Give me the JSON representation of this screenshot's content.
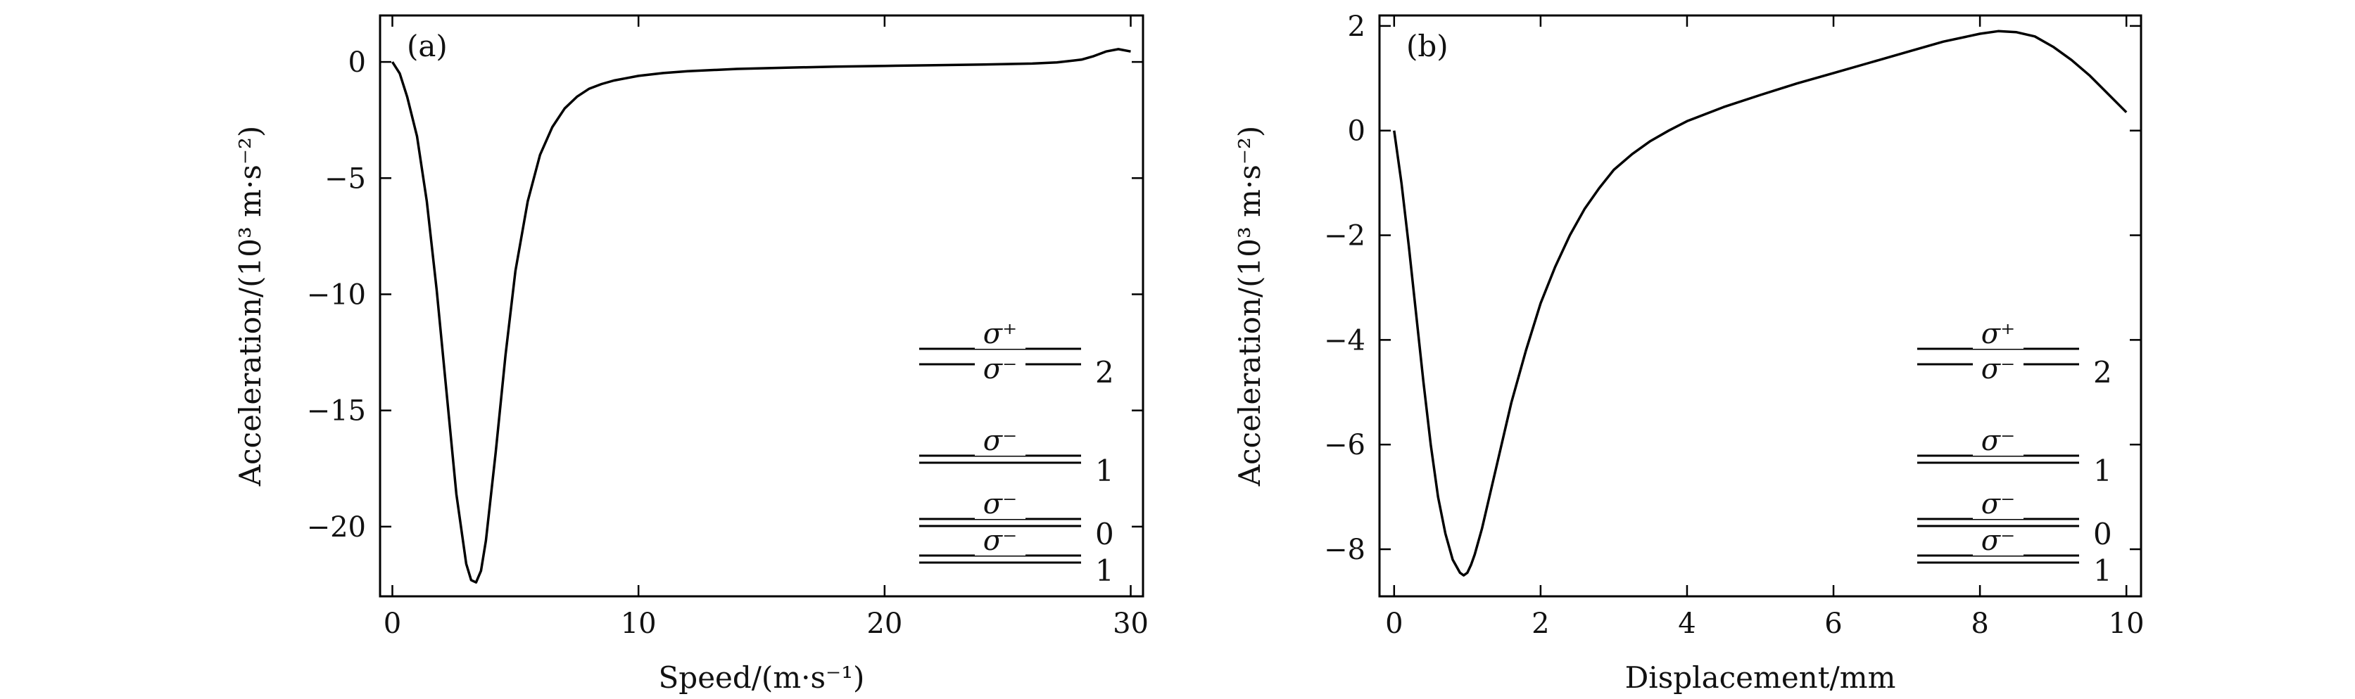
{
  "chart_data": [
    {
      "type": "line",
      "panel_label": "(a)",
      "xlabel": "Speed/(m·s⁻¹)",
      "ylabel": "Acceleration/(10³ m·s⁻²)",
      "xlim": [
        -0.5,
        30.5
      ],
      "ylim": [
        -23,
        2
      ],
      "xticks": [
        0,
        10,
        20,
        30
      ],
      "xtick_labels": [
        "0",
        "10",
        "20",
        "30"
      ],
      "yticks": [
        0,
        -5,
        -10,
        -15,
        -20
      ],
      "ytick_labels": [
        "0",
        "−5",
        "−10",
        "−15",
        "−20"
      ],
      "grid": false,
      "series": [
        {
          "x": [
            0,
            0.3,
            0.6,
            1.0,
            1.4,
            1.8,
            2.2,
            2.6,
            3.0,
            3.2,
            3.4,
            3.6,
            3.8,
            4.2,
            4.6,
            5.0,
            5.5,
            6.0,
            6.5,
            7.0,
            7.5,
            8.0,
            8.5,
            9.0,
            9.5,
            10,
            11,
            12,
            14,
            16,
            18,
            20,
            22,
            24,
            26,
            27,
            28,
            28.5,
            29,
            29.5,
            30
          ],
          "y": [
            0,
            -0.5,
            -1.5,
            -3.2,
            -6.0,
            -9.8,
            -14.2,
            -18.6,
            -21.6,
            -22.3,
            -22.4,
            -21.9,
            -20.6,
            -16.8,
            -12.6,
            -9.0,
            -6.0,
            -4.0,
            -2.8,
            -2.0,
            -1.5,
            -1.15,
            -0.95,
            -0.8,
            -0.7,
            -0.6,
            -0.48,
            -0.4,
            -0.3,
            -0.25,
            -0.2,
            -0.17,
            -0.14,
            -0.11,
            -0.07,
            -0.02,
            0.1,
            0.25,
            0.45,
            0.55,
            0.45
          ]
        }
      ],
      "level_diagram": {
        "levels": [
          {
            "label": "2",
            "transitions": [
              "σ⁺",
              "σ⁻"
            ]
          },
          {
            "label": "1",
            "transitions": [
              "σ⁻"
            ]
          },
          {
            "label": "0",
            "transitions": [
              "σ⁻"
            ]
          },
          {
            "label": "1",
            "transitions": [
              "σ⁻"
            ]
          }
        ]
      }
    },
    {
      "type": "line",
      "panel_label": "(b)",
      "xlabel": "Displacement/mm",
      "ylabel": "Acceleration/(10³ m·s⁻²)",
      "xlim": [
        -0.2,
        10.2
      ],
      "ylim": [
        -8.9,
        2.2
      ],
      "xticks": [
        0,
        2,
        4,
        6,
        8,
        10
      ],
      "xtick_labels": [
        "0",
        "2",
        "4",
        "6",
        "8",
        "10"
      ],
      "yticks": [
        2,
        0,
        -2,
        -4,
        -6,
        -8
      ],
      "ytick_labels": [
        "2",
        "0",
        "−2",
        "−4",
        "−6",
        "−8"
      ],
      "grid": false,
      "series": [
        {
          "x": [
            0,
            0.1,
            0.2,
            0.3,
            0.4,
            0.5,
            0.6,
            0.7,
            0.8,
            0.9,
            0.95,
            1.0,
            1.05,
            1.1,
            1.2,
            1.3,
            1.4,
            1.5,
            1.6,
            1.8,
            2.0,
            2.2,
            2.4,
            2.6,
            2.8,
            3.0,
            3.25,
            3.5,
            3.75,
            4.0,
            4.5,
            5.0,
            5.5,
            6.0,
            6.5,
            7.0,
            7.5,
            8.0,
            8.25,
            8.5,
            8.75,
            9.0,
            9.25,
            9.5,
            9.75,
            10.0
          ],
          "y": [
            0,
            -1.0,
            -2.2,
            -3.5,
            -4.8,
            -6.0,
            -7.0,
            -7.7,
            -8.2,
            -8.45,
            -8.5,
            -8.45,
            -8.3,
            -8.1,
            -7.6,
            -7.0,
            -6.4,
            -5.8,
            -5.2,
            -4.2,
            -3.3,
            -2.6,
            -2.0,
            -1.5,
            -1.1,
            -0.75,
            -0.45,
            -0.2,
            0.0,
            0.18,
            0.45,
            0.68,
            0.9,
            1.1,
            1.3,
            1.5,
            1.7,
            1.85,
            1.9,
            1.88,
            1.8,
            1.6,
            1.35,
            1.05,
            0.7,
            0.35
          ]
        }
      ],
      "level_diagram": {
        "levels": [
          {
            "label": "2",
            "transitions": [
              "σ⁺",
              "σ⁻"
            ]
          },
          {
            "label": "1",
            "transitions": [
              "σ⁻"
            ]
          },
          {
            "label": "0",
            "transitions": [
              "σ⁻"
            ]
          },
          {
            "label": "1",
            "transitions": [
              "σ⁻"
            ]
          }
        ]
      }
    }
  ]
}
